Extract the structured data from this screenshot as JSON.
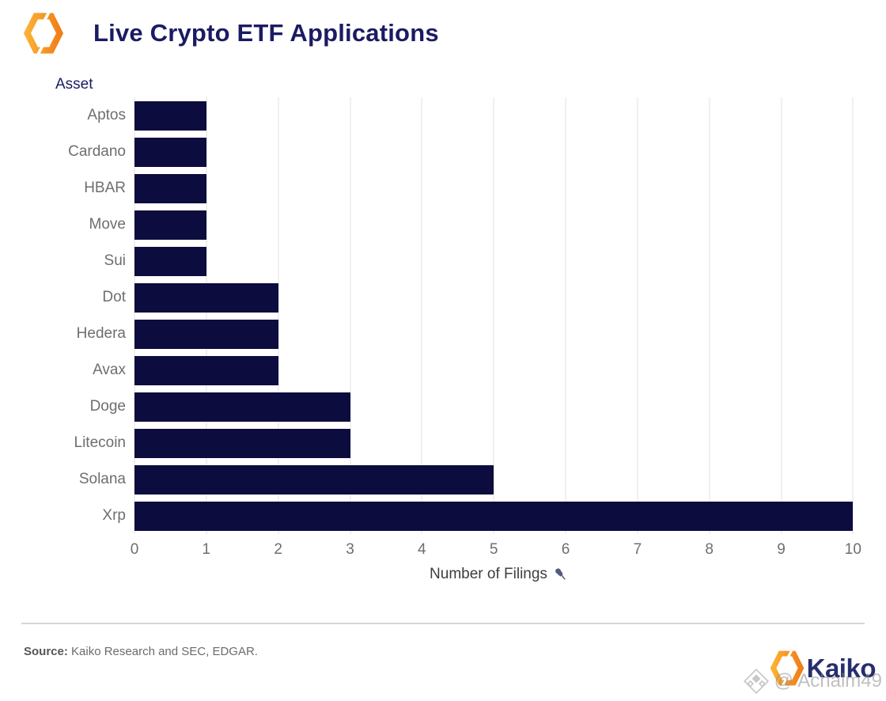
{
  "header": {
    "title": "Live Crypto ETF Applications",
    "logo": "kaiko-hexagon-icon"
  },
  "chart_data": {
    "type": "bar",
    "orientation": "horizontal",
    "title": "Live Crypto ETF Applications",
    "ylabel": "Asset",
    "xlabel": "Number of Filings",
    "xlabel_icon": "pushpin-icon",
    "categories": [
      "Aptos",
      "Cardano",
      "HBAR",
      "Move",
      "Sui",
      "Dot",
      "Hedera",
      "Avax",
      "Doge",
      "Litecoin",
      "Solana",
      "Xrp"
    ],
    "values": [
      1,
      1,
      1,
      1,
      1,
      2,
      2,
      2,
      3,
      3,
      5,
      10
    ],
    "xticks": [
      0,
      1,
      2,
      3,
      4,
      5,
      6,
      7,
      8,
      9,
      10
    ],
    "xlim": [
      0,
      10.15
    ],
    "grid": "vertical-light-gray",
    "legend": "none",
    "bar_color": "#0c0c3e"
  },
  "footer": {
    "source_label": "Source:",
    "source_text": "Kaiko Research and SEC, EDGAR.",
    "brand": "Kaiko",
    "watermark": "@ Achalm49"
  },
  "colors": {
    "bar": "#0c0c3e",
    "title_navy": "#1b1b63",
    "axis_text_gray": "#6e6e6e",
    "gridline": "#f0f0f0",
    "brand_orange_light": "#fbb034",
    "brand_orange_dark": "#f07f1a",
    "pushpin_slate": "#525a7d",
    "watermark_gray": "#8d8d8d"
  }
}
